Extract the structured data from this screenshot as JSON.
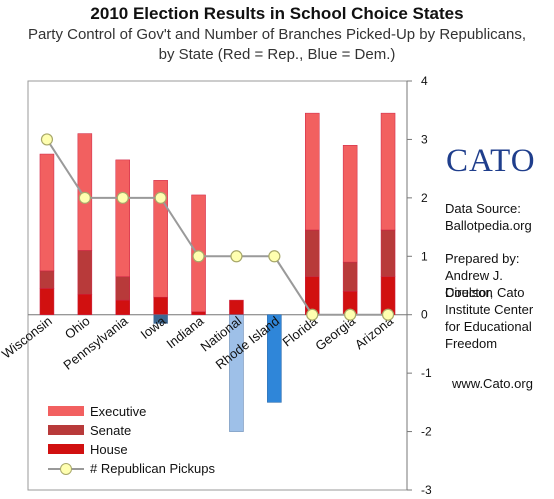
{
  "chart_data": {
    "type": "bar",
    "title": "2010 Election Results in School Choice States",
    "subtitle_line1": "Party Control of Gov't and Number of  Branches Picked-Up by Republicans,",
    "subtitle_line2": "by State (Red = Rep., Blue = Dem.)",
    "categories": [
      "Wisconsin",
      "Ohio",
      "Pennsylvania",
      "Iowa",
      "Indiana",
      "National",
      "Rhode Island",
      "Florida",
      "Georgia",
      "Arizona"
    ],
    "ylim": [
      -3,
      4
    ],
    "yticks": [
      "4",
      "3",
      "2",
      "1",
      "0",
      "-1",
      "-2",
      "-3"
    ],
    "series": [
      {
        "name": "House",
        "color": "#d11010",
        "values": [
          0.45,
          0.35,
          0.25,
          0.3,
          0.05,
          0.25,
          -1.5,
          0.65,
          0.4,
          0.65
        ]
      },
      {
        "name": "Senate",
        "color": "#b83a3a",
        "values": [
          0.3,
          0.75,
          0.4,
          0,
          0,
          0,
          -1.1,
          0.8,
          0.5,
          0.8
        ]
      },
      {
        "name": "Executive",
        "color": "#f26060",
        "values": [
          2.0,
          2.0,
          2.0,
          2.0,
          2.0,
          0,
          0,
          2.0,
          2.0,
          2.0
        ]
      }
    ],
    "negative_colors": {
      "Iowa": "#3d6891",
      "National": "#9ec0e8"
    },
    "pickups": {
      "name": "# Republican Pickups",
      "values": [
        3,
        2,
        2,
        2,
        1,
        1,
        1,
        0,
        0,
        0
      ]
    },
    "grid": false,
    "legend_position": "bottom-left"
  },
  "sidebar": {
    "logo": "CATO",
    "source_label": "Data Source:",
    "source_value": "Ballotpedia.org",
    "prepared_label": "Prepared by:",
    "author": "Andrew J. Coulson",
    "role1": "Director, Cato",
    "role2": "Institute Center",
    "role3": "for Educational",
    "role4": "Freedom",
    "website": "www.Cato.org"
  },
  "legend": {
    "executive": "Executive",
    "senate": "Senate",
    "house": "House",
    "pickups": "# Republican Pickups"
  },
  "colors": {
    "executive": "#f26060",
    "senate": "#b83a3a",
    "house": "#d11010",
    "dem_light": "#9ec0e8",
    "dem_mid": "#2f86d9",
    "dem_dark": "#3d6891",
    "pickup_fill": "#ffffb0"
  }
}
